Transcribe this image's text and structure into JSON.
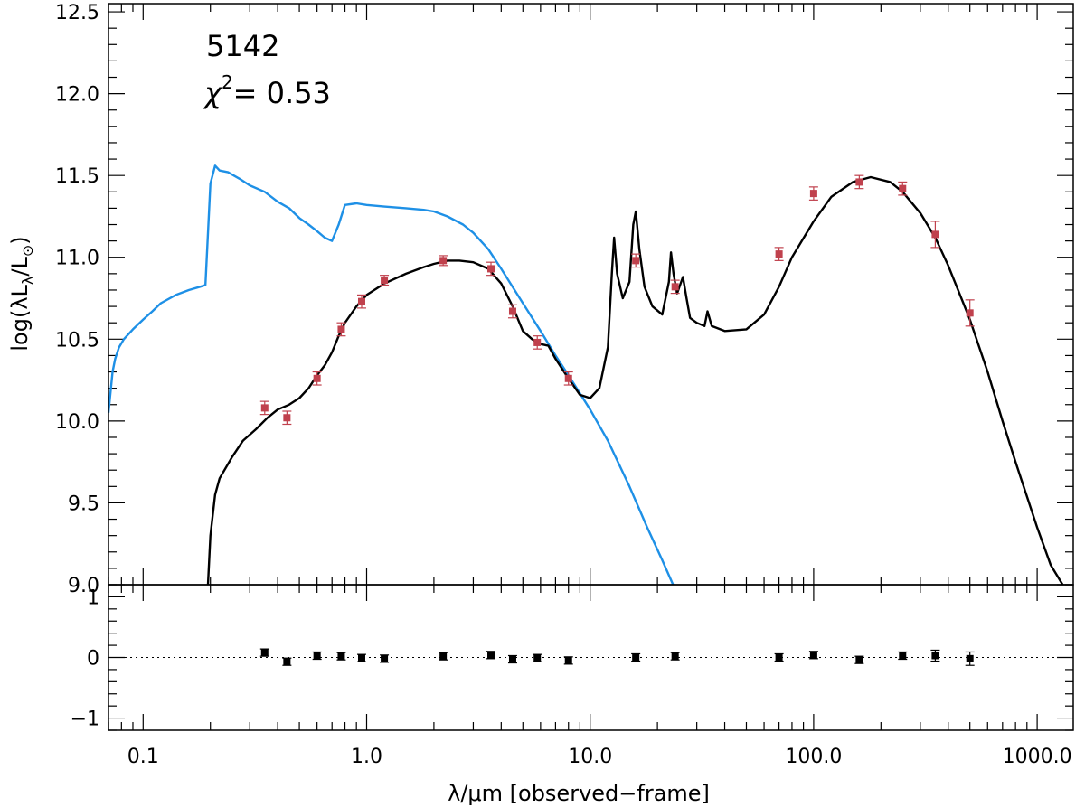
{
  "chart_data": {
    "type": "line",
    "annotations": {
      "id": "5142",
      "chi2_value": "0.53"
    },
    "x_axis": {
      "label": "λ/μm [observed−frame]",
      "scale": "log",
      "range": [
        0.07,
        1450
      ],
      "ticks": [
        {
          "value": 0.1,
          "label": "0.1"
        },
        {
          "value": 1,
          "label": "1.0"
        },
        {
          "value": 10,
          "label": "10.0"
        },
        {
          "value": 100,
          "label": "100.0"
        },
        {
          "value": 1000,
          "label": "1000.0"
        }
      ]
    },
    "top_panel": {
      "y_label": "log(λL_λ/L_⊙)",
      "ylim": [
        9.0,
        12.55
      ],
      "ticks": [
        "9.0",
        "9.5",
        "10.0",
        "10.5",
        "11.0",
        "11.5",
        "12.0",
        "12.5"
      ],
      "series": [
        {
          "kind": "unattenuated_model",
          "color": "#1e90e6",
          "points": [
            [
              0.07,
              10.05
            ],
            [
              0.073,
              10.3
            ],
            [
              0.075,
              10.38
            ],
            [
              0.078,
              10.45
            ],
            [
              0.082,
              10.5
            ],
            [
              0.09,
              10.56
            ],
            [
              0.1,
              10.62
            ],
            [
              0.11,
              10.67
            ],
            [
              0.12,
              10.72
            ],
            [
              0.14,
              10.77
            ],
            [
              0.16,
              10.8
            ],
            [
              0.18,
              10.82
            ],
            [
              0.19,
              10.83
            ],
            [
              0.2,
              11.45
            ],
            [
              0.21,
              11.56
            ],
            [
              0.22,
              11.53
            ],
            [
              0.24,
              11.52
            ],
            [
              0.27,
              11.48
            ],
            [
              0.3,
              11.44
            ],
            [
              0.35,
              11.4
            ],
            [
              0.4,
              11.34
            ],
            [
              0.45,
              11.3
            ],
            [
              0.5,
              11.24
            ],
            [
              0.55,
              11.2
            ],
            [
              0.6,
              11.16
            ],
            [
              0.65,
              11.12
            ],
            [
              0.7,
              11.1
            ],
            [
              0.75,
              11.2
            ],
            [
              0.8,
              11.32
            ],
            [
              0.9,
              11.33
            ],
            [
              1.0,
              11.32
            ],
            [
              1.2,
              11.31
            ],
            [
              1.5,
              11.3
            ],
            [
              1.8,
              11.29
            ],
            [
              2.0,
              11.28
            ],
            [
              2.3,
              11.25
            ],
            [
              2.7,
              11.2
            ],
            [
              3.0,
              11.15
            ],
            [
              3.5,
              11.05
            ],
            [
              4.0,
              10.93
            ],
            [
              5.0,
              10.72
            ],
            [
              6.0,
              10.55
            ],
            [
              7.0,
              10.4
            ],
            [
              8.0,
              10.28
            ],
            [
              10.0,
              10.07
            ],
            [
              12.0,
              9.88
            ],
            [
              15.0,
              9.6
            ],
            [
              18.0,
              9.35
            ],
            [
              21.0,
              9.15
            ],
            [
              23.5,
              9.0
            ]
          ]
        },
        {
          "kind": "best_fit_model",
          "color": "#000000",
          "points": [
            [
              0.195,
              9.0
            ],
            [
              0.2,
              9.3
            ],
            [
              0.21,
              9.55
            ],
            [
              0.22,
              9.65
            ],
            [
              0.25,
              9.78
            ],
            [
              0.28,
              9.88
            ],
            [
              0.32,
              9.95
            ],
            [
              0.36,
              10.02
            ],
            [
              0.4,
              10.07
            ],
            [
              0.45,
              10.1
            ],
            [
              0.5,
              10.14
            ],
            [
              0.55,
              10.2
            ],
            [
              0.6,
              10.28
            ],
            [
              0.65,
              10.34
            ],
            [
              0.7,
              10.42
            ],
            [
              0.75,
              10.52
            ],
            [
              0.8,
              10.6
            ],
            [
              0.9,
              10.7
            ],
            [
              1.0,
              10.77
            ],
            [
              1.2,
              10.84
            ],
            [
              1.5,
              10.9
            ],
            [
              1.8,
              10.94
            ],
            [
              2.0,
              10.96
            ],
            [
              2.3,
              10.98
            ],
            [
              2.6,
              10.98
            ],
            [
              3.0,
              10.97
            ],
            [
              3.5,
              10.93
            ],
            [
              4.0,
              10.84
            ],
            [
              4.5,
              10.7
            ],
            [
              5.0,
              10.55
            ],
            [
              5.5,
              10.5
            ],
            [
              6.0,
              10.47
            ],
            [
              6.5,
              10.46
            ],
            [
              7.0,
              10.38
            ],
            [
              8.0,
              10.26
            ],
            [
              9.0,
              10.16
            ],
            [
              10.0,
              10.14
            ],
            [
              11.0,
              10.2
            ],
            [
              12.0,
              10.45
            ],
            [
              12.5,
              10.9
            ],
            [
              12.8,
              11.12
            ],
            [
              13.2,
              10.9
            ],
            [
              14.0,
              10.75
            ],
            [
              15.0,
              10.85
            ],
            [
              15.6,
              11.2
            ],
            [
              16.0,
              11.28
            ],
            [
              16.6,
              11.05
            ],
            [
              17.5,
              10.82
            ],
            [
              19.0,
              10.7
            ],
            [
              21.0,
              10.65
            ],
            [
              22.5,
              10.85
            ],
            [
              23.0,
              11.03
            ],
            [
              23.6,
              10.9
            ],
            [
              24.5,
              10.78
            ],
            [
              26.0,
              10.88
            ],
            [
              27.0,
              10.75
            ],
            [
              28.0,
              10.63
            ],
            [
              30.0,
              10.6
            ],
            [
              32.5,
              10.58
            ],
            [
              33.5,
              10.67
            ],
            [
              35.0,
              10.58
            ],
            [
              40.0,
              10.55
            ],
            [
              50.0,
              10.56
            ],
            [
              60.0,
              10.65
            ],
            [
              70.0,
              10.82
            ],
            [
              80.0,
              11.0
            ],
            [
              100.0,
              11.22
            ],
            [
              120.0,
              11.37
            ],
            [
              150.0,
              11.46
            ],
            [
              180.0,
              11.49
            ],
            [
              220.0,
              11.46
            ],
            [
              250.0,
              11.4
            ],
            [
              300.0,
              11.27
            ],
            [
              350.0,
              11.12
            ],
            [
              400.0,
              10.95
            ],
            [
              500.0,
              10.62
            ],
            [
              600.0,
              10.3
            ],
            [
              700.0,
              10.0
            ],
            [
              800.0,
              9.75
            ],
            [
              1000.0,
              9.35
            ],
            [
              1150.0,
              9.12
            ],
            [
              1300.0,
              9.0
            ]
          ]
        }
      ],
      "observations": [
        {
          "x": 0.35,
          "y": 10.08,
          "err": 0.04
        },
        {
          "x": 0.44,
          "y": 10.02,
          "err": 0.04
        },
        {
          "x": 0.6,
          "y": 10.26,
          "err": 0.04
        },
        {
          "x": 0.77,
          "y": 10.56,
          "err": 0.04
        },
        {
          "x": 0.95,
          "y": 10.73,
          "err": 0.04
        },
        {
          "x": 1.2,
          "y": 10.86,
          "err": 0.03
        },
        {
          "x": 2.2,
          "y": 10.98,
          "err": 0.03
        },
        {
          "x": 3.6,
          "y": 10.93,
          "err": 0.04
        },
        {
          "x": 4.5,
          "y": 10.67,
          "err": 0.04
        },
        {
          "x": 5.8,
          "y": 10.48,
          "err": 0.04
        },
        {
          "x": 8.0,
          "y": 10.26,
          "err": 0.04
        },
        {
          "x": 16.0,
          "y": 10.98,
          "err": 0.04
        },
        {
          "x": 24.0,
          "y": 10.82,
          "err": 0.04
        },
        {
          "x": 70.0,
          "y": 11.02,
          "err": 0.04
        },
        {
          "x": 100.0,
          "y": 11.39,
          "err": 0.04
        },
        {
          "x": 160.0,
          "y": 11.46,
          "err": 0.04
        },
        {
          "x": 250.0,
          "y": 11.42,
          "err": 0.04
        },
        {
          "x": 350.0,
          "y": 11.14,
          "err": 0.08
        },
        {
          "x": 500.0,
          "y": 10.66,
          "err": 0.08
        }
      ],
      "observation_color": "#c0414d"
    },
    "bottom_panel": {
      "ylim": [
        -1.2,
        1.2
      ],
      "ticks": [
        "−1",
        "0",
        "1"
      ],
      "tick_values": [
        -1,
        0,
        1
      ],
      "reference_line": 0,
      "residuals": [
        {
          "x": 0.35,
          "y": 0.08,
          "err": 0.06
        },
        {
          "x": 0.44,
          "y": -0.07,
          "err": 0.06
        },
        {
          "x": 0.6,
          "y": 0.03,
          "err": 0.06
        },
        {
          "x": 0.77,
          "y": 0.02,
          "err": 0.06
        },
        {
          "x": 0.95,
          "y": -0.01,
          "err": 0.06
        },
        {
          "x": 1.2,
          "y": -0.02,
          "err": 0.06
        },
        {
          "x": 2.2,
          "y": 0.02,
          "err": 0.06
        },
        {
          "x": 3.6,
          "y": 0.04,
          "err": 0.06
        },
        {
          "x": 4.5,
          "y": -0.03,
          "err": 0.06
        },
        {
          "x": 5.8,
          "y": -0.01,
          "err": 0.06
        },
        {
          "x": 8.0,
          "y": -0.05,
          "err": 0.06
        },
        {
          "x": 16.0,
          "y": 0.0,
          "err": 0.06
        },
        {
          "x": 24.0,
          "y": 0.02,
          "err": 0.06
        },
        {
          "x": 70.0,
          "y": 0.0,
          "err": 0.06
        },
        {
          "x": 100.0,
          "y": 0.04,
          "err": 0.06
        },
        {
          "x": 160.0,
          "y": -0.04,
          "err": 0.06
        },
        {
          "x": 250.0,
          "y": 0.03,
          "err": 0.06
        },
        {
          "x": 350.0,
          "y": 0.03,
          "err": 0.09
        },
        {
          "x": 500.0,
          "y": -0.02,
          "err": 0.11
        }
      ]
    }
  }
}
